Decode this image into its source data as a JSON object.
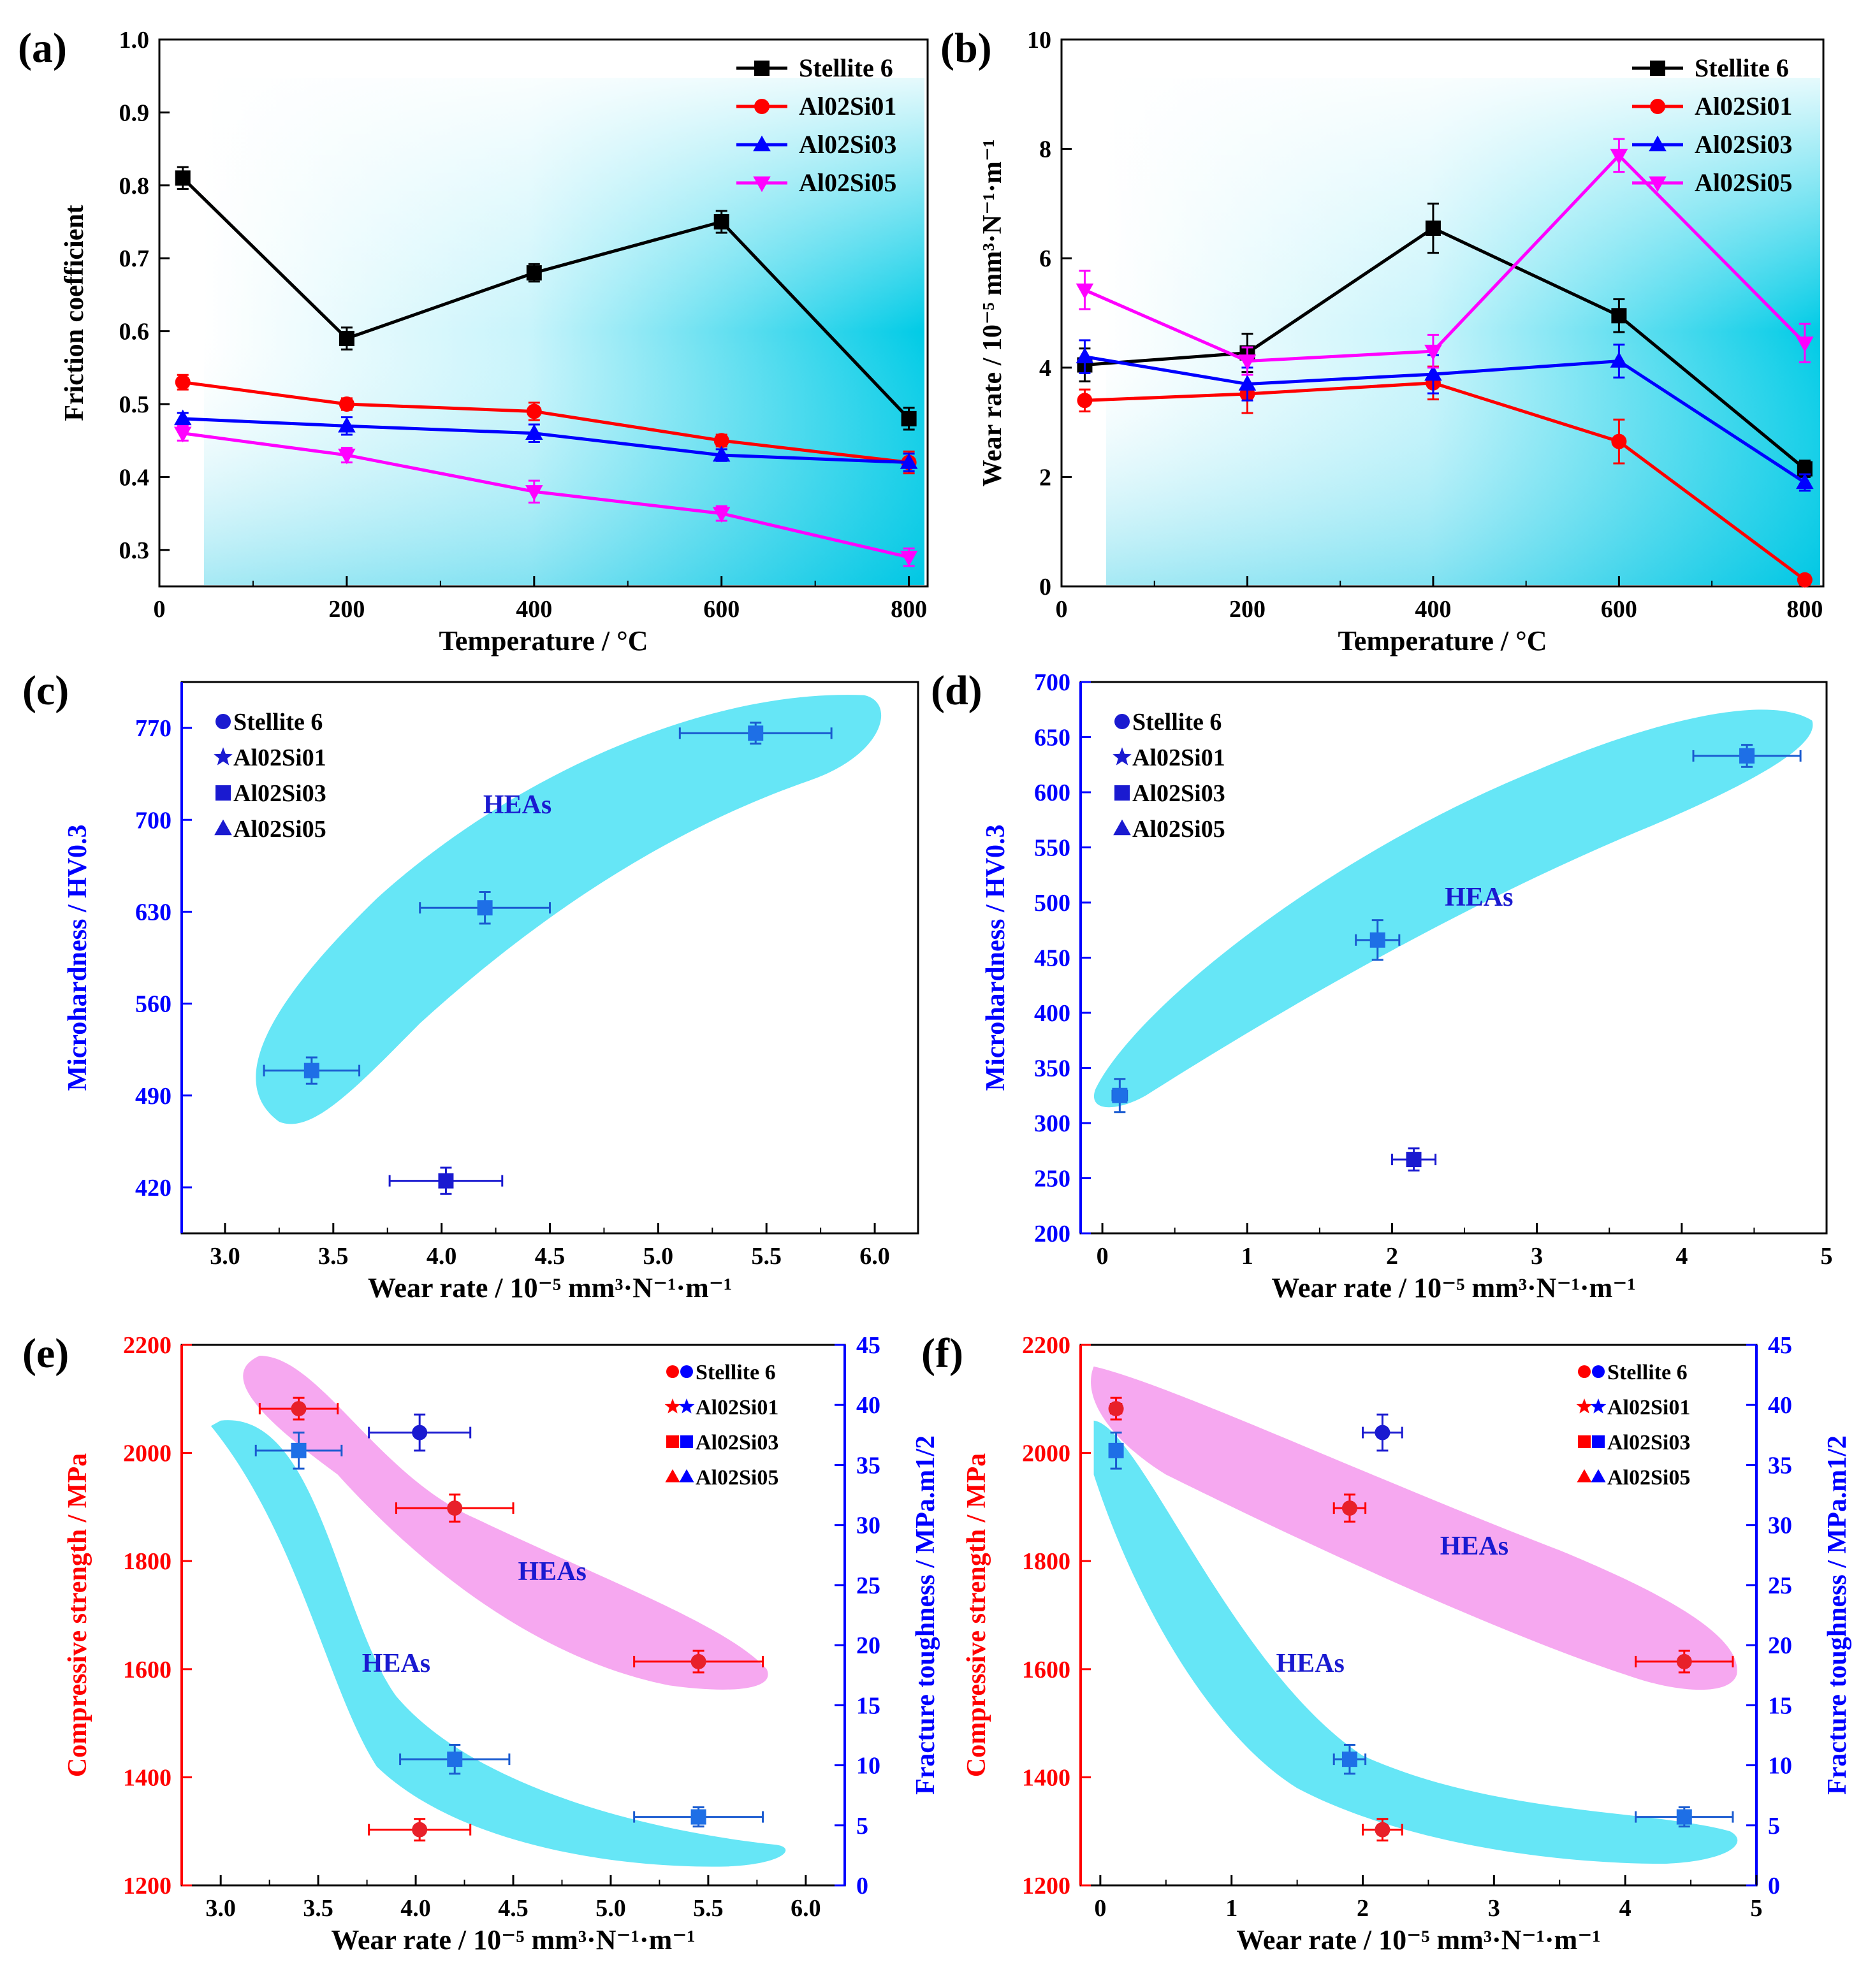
{
  "colors": {
    "black": "#000000",
    "red": "#ff0000",
    "blue": "#0000ff",
    "magenta": "#ff00ff",
    "navy": "#1a1ad0",
    "cyan": "#00d8f0",
    "pink": "#f6a8f0",
    "region": "#66e6f6"
  },
  "chart_data": [
    {
      "panel": "(a)",
      "type": "line",
      "xlabel": "Temperature / °C",
      "ylabel": "Friction coefficient",
      "xlim": [
        0,
        820
      ],
      "ylim": [
        0.25,
        1.0
      ],
      "xticks": [
        0,
        200,
        400,
        600,
        800
      ],
      "yticks": [
        0.3,
        0.4,
        0.5,
        0.6,
        0.7,
        0.8,
        0.9,
        1.0
      ],
      "ytick_labels": [
        "0.3",
        "0.4",
        "0.5",
        "0.6",
        "0.7",
        "0.8",
        "0.9",
        "1.0"
      ],
      "x": [
        25,
        200,
        400,
        600,
        800
      ],
      "series": [
        {
          "name": "Stellite 6",
          "color": "#000000",
          "marker": "square",
          "values": [
            0.81,
            0.59,
            0.68,
            0.75,
            0.48
          ],
          "errors": [
            0.015,
            0.015,
            0.012,
            0.015,
            0.015
          ]
        },
        {
          "name": "Al02Si01",
          "color": "#ff0000",
          "marker": "circle",
          "values": [
            0.53,
            0.5,
            0.49,
            0.45,
            0.42
          ],
          "errors": [
            0.01,
            0.008,
            0.012,
            0.008,
            0.015
          ]
        },
        {
          "name": "Al02Si03",
          "color": "#0000ff",
          "marker": "triangle",
          "values": [
            0.48,
            0.47,
            0.46,
            0.43,
            0.42
          ],
          "errors": [
            0.008,
            0.012,
            0.012,
            0.008,
            0.012
          ]
        },
        {
          "name": "Al02Si05",
          "color": "#ff00ff",
          "marker": "triangle-down",
          "values": [
            0.46,
            0.43,
            0.38,
            0.35,
            0.29
          ],
          "errors": [
            0.01,
            0.01,
            0.015,
            0.01,
            0.012
          ]
        }
      ]
    },
    {
      "panel": "(b)",
      "type": "line",
      "xlabel": "Temperature / °C",
      "ylabel": "Wear rate / 10⁻⁵ mm³·N⁻¹·m⁻¹",
      "xlim": [
        0,
        820
      ],
      "ylim": [
        0,
        10
      ],
      "xticks": [
        0,
        200,
        400,
        600,
        800
      ],
      "yticks": [
        0,
        2,
        4,
        6,
        8,
        10
      ],
      "ytick_labels": [
        "0",
        "2",
        "4",
        "6",
        "8",
        "10"
      ],
      "x": [
        25,
        200,
        400,
        600,
        800
      ],
      "series": [
        {
          "name": "Stellite 6",
          "color": "#000000",
          "marker": "square",
          "values": [
            4.05,
            4.27,
            6.55,
            4.95,
            2.15
          ],
          "errors": [
            0.3,
            0.35,
            0.45,
            0.3,
            0.15
          ]
        },
        {
          "name": "Al02Si01",
          "color": "#ff0000",
          "marker": "circle",
          "values": [
            3.4,
            3.52,
            3.72,
            2.65,
            0.12
          ],
          "errors": [
            0.2,
            0.35,
            0.3,
            0.4,
            0.08
          ]
        },
        {
          "name": "Al02Si03",
          "color": "#0000ff",
          "marker": "triangle",
          "values": [
            4.2,
            3.7,
            3.88,
            4.12,
            1.9
          ],
          "errors": [
            0.3,
            0.3,
            0.35,
            0.3,
            0.15
          ]
        },
        {
          "name": "Al02Si05",
          "color": "#ff00ff",
          "marker": "triangle-down",
          "values": [
            5.42,
            4.12,
            4.3,
            7.88,
            4.45
          ],
          "errors": [
            0.35,
            0.25,
            0.3,
            0.3,
            0.35
          ]
        }
      ]
    },
    {
      "panel": "(c)",
      "type": "scatter",
      "xlabel": "Wear rate / 10⁻⁵ mm³·N⁻¹·m⁻¹",
      "ylabel": "Microhardness / HV0.3",
      "xlim": [
        2.8,
        6.2
      ],
      "ylim": [
        385,
        805
      ],
      "xticks": [
        3.0,
        3.5,
        4.0,
        4.5,
        5.0,
        5.5,
        6.0
      ],
      "xtick_labels": [
        "3.0",
        "3.5",
        "4.0",
        "4.5",
        "5.0",
        "5.5",
        "6.0"
      ],
      "yticks": [
        420,
        490,
        560,
        630,
        700,
        770
      ],
      "annotation": "HEAs",
      "points": [
        {
          "name": "Stellite 6",
          "marker": "circle",
          "x": 4.02,
          "y": 425,
          "xerr": 0.26,
          "yerr": 10
        },
        {
          "name": "Al02Si01",
          "marker": "star",
          "x": 3.4,
          "y": 509,
          "xerr": 0.22,
          "yerr": 10
        },
        {
          "name": "Al02Si03",
          "marker": "square",
          "x": 4.2,
          "y": 633,
          "xerr": 0.3,
          "yerr": 12
        },
        {
          "name": "Al02Si05",
          "marker": "triangle",
          "x": 5.45,
          "y": 766,
          "xerr": 0.35,
          "yerr": 8
        }
      ]
    },
    {
      "panel": "(d)",
      "type": "scatter",
      "xlabel": "Wear rate / 10⁻⁵ mm³·N⁻¹·m⁻¹",
      "ylabel": "Microhardness / HV0.3",
      "xlim": [
        -0.15,
        5.0
      ],
      "ylim": [
        200,
        700
      ],
      "xticks": [
        0,
        1,
        2,
        3,
        4,
        5
      ],
      "yticks": [
        200,
        250,
        300,
        350,
        400,
        450,
        500,
        550,
        600,
        650,
        700
      ],
      "annotation": "HEAs",
      "points": [
        {
          "name": "Stellite 6",
          "marker": "circle",
          "x": 2.15,
          "y": 267,
          "xerr": 0.15,
          "yerr": 10
        },
        {
          "name": "Al02Si01",
          "marker": "star",
          "x": 0.12,
          "y": 325,
          "xerr": 0.05,
          "yerr": 15
        },
        {
          "name": "Al02Si03",
          "marker": "square",
          "x": 1.9,
          "y": 466,
          "xerr": 0.15,
          "yerr": 18
        },
        {
          "name": "Al02Si05",
          "marker": "triangle",
          "x": 4.45,
          "y": 633,
          "xerr": 0.37,
          "yerr": 10
        }
      ]
    },
    {
      "panel": "(e)",
      "type": "scatter-dual-axis",
      "xlabel": "Wear rate / 10⁻⁵ mm³·N⁻¹·m⁻¹",
      "ylabel_left": "Compressive strength / MPa",
      "ylabel_right": "Fracture toughness / MPa.m1/2",
      "xlim": [
        2.8,
        6.2
      ],
      "ylim_left": [
        1200,
        2200
      ],
      "ylim_right": [
        0,
        45
      ],
      "xticks": [
        3.0,
        3.5,
        4.0,
        4.5,
        5.0,
        5.5,
        6.0
      ],
      "xtick_labels": [
        "3.0",
        "3.5",
        "4.0",
        "4.5",
        "5.0",
        "5.5",
        "6.0"
      ],
      "yticks_left": [
        1200,
        1400,
        1600,
        1800,
        2000,
        2200
      ],
      "yticks_right": [
        0,
        5,
        10,
        15,
        20,
        25,
        30,
        35,
        40,
        45
      ],
      "annotations": [
        "HEAs",
        "HEAs"
      ],
      "compressive": [
        {
          "name": "Stellite 6",
          "marker": "circle",
          "x": 4.02,
          "y": 1303,
          "xerr": 0.26,
          "yerr": 20
        },
        {
          "name": "Al02Si01",
          "marker": "star",
          "x": 3.4,
          "y": 2082,
          "xerr": 0.2,
          "yerr": 20
        },
        {
          "name": "Al02Si03",
          "marker": "square",
          "x": 4.2,
          "y": 1898,
          "xerr": 0.3,
          "yerr": 25
        },
        {
          "name": "Al02Si05",
          "marker": "triangle",
          "x": 5.45,
          "y": 1614,
          "xerr": 0.33,
          "yerr": 20
        }
      ],
      "toughness": [
        {
          "name": "Stellite 6",
          "marker": "circle",
          "x": 4.02,
          "y": 37.7,
          "xerr": 0.26,
          "yerr": 1.5
        },
        {
          "name": "Al02Si01",
          "marker": "star",
          "x": 3.4,
          "y": 36.2,
          "xerr": 0.22,
          "yerr": 1.5
        },
        {
          "name": "Al02Si03",
          "marker": "square",
          "x": 4.2,
          "y": 10.5,
          "xerr": 0.28,
          "yerr": 1.2
        },
        {
          "name": "Al02Si05",
          "marker": "triangle",
          "x": 5.45,
          "y": 5.7,
          "xerr": 0.33,
          "yerr": 0.8
        }
      ]
    },
    {
      "panel": "(f)",
      "type": "scatter-dual-axis",
      "xlabel": "Wear rate / 10⁻⁵ mm³·N⁻¹·m⁻¹",
      "ylabel_left": "Compressive strength / MPa",
      "ylabel_right": "Fracture toughness / MPa.m1/2",
      "xlim": [
        -0.15,
        5.0
      ],
      "ylim_left": [
        1200,
        2200
      ],
      "ylim_right": [
        0,
        45
      ],
      "xticks": [
        0,
        1,
        2,
        3,
        4,
        5
      ],
      "yticks_left": [
        1200,
        1400,
        1600,
        1800,
        2000,
        2200
      ],
      "yticks_right": [
        0,
        5,
        10,
        15,
        20,
        25,
        30,
        35,
        40,
        45
      ],
      "annotations": [
        "HEAs",
        "HEAs"
      ],
      "compressive": [
        {
          "name": "Stellite 6",
          "marker": "circle",
          "x": 2.15,
          "y": 1303,
          "xerr": 0.15,
          "yerr": 20
        },
        {
          "name": "Al02Si01",
          "marker": "star",
          "x": 0.12,
          "y": 2082,
          "xerr": 0.04,
          "yerr": 20
        },
        {
          "name": "Al02Si03",
          "marker": "square",
          "x": 1.9,
          "y": 1898,
          "xerr": 0.12,
          "yerr": 25
        },
        {
          "name": "Al02Si05",
          "marker": "triangle",
          "x": 4.45,
          "y": 1614,
          "xerr": 0.37,
          "yerr": 20
        }
      ],
      "toughness": [
        {
          "name": "Stellite 6",
          "marker": "circle",
          "x": 2.15,
          "y": 37.7,
          "xerr": 0.15,
          "yerr": 1.5
        },
        {
          "name": "Al02Si01",
          "marker": "star",
          "x": 0.12,
          "y": 36.2,
          "xerr": 0.04,
          "yerr": 1.5
        },
        {
          "name": "Al02Si03",
          "marker": "square",
          "x": 1.9,
          "y": 10.5,
          "xerr": 0.12,
          "yerr": 1.2
        },
        {
          "name": "Al02Si05",
          "marker": "triangle",
          "x": 4.45,
          "y": 5.7,
          "xerr": 0.37,
          "yerr": 0.8
        }
      ]
    }
  ]
}
